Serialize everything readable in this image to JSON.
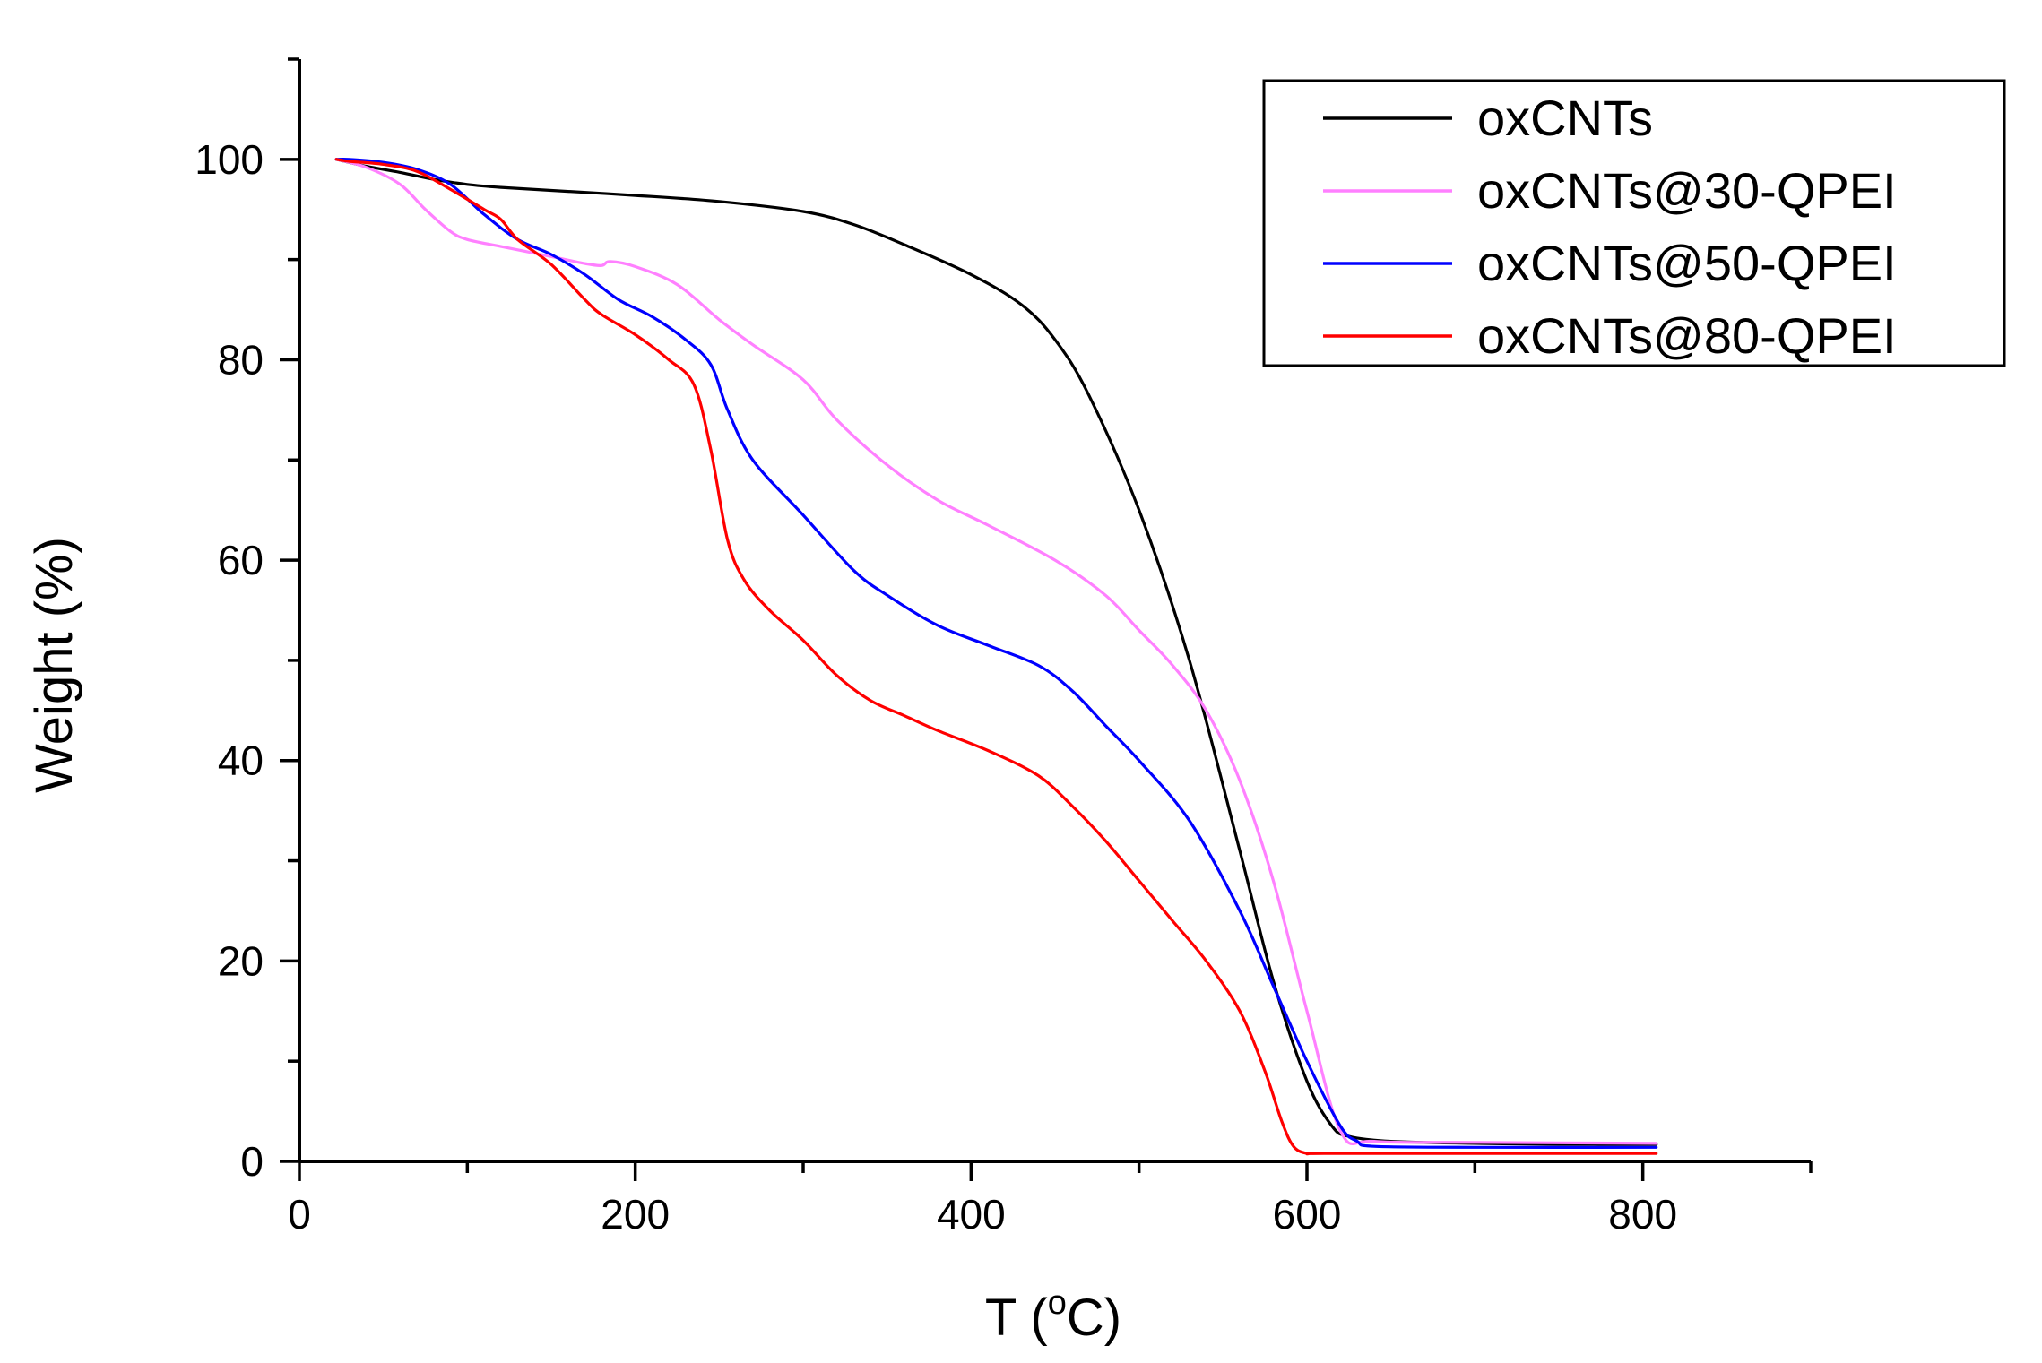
{
  "chart_data": {
    "type": "line",
    "title": "",
    "xlabel": "T (",
    "xlabel_sup": "o",
    "xlabel_unit": "C)",
    "ylabel": "Weight (%)",
    "xlim": [
      0,
      900
    ],
    "ylim": [
      0,
      110
    ],
    "x_ticks": [
      0,
      200,
      400,
      600,
      800
    ],
    "x_minor_ticks": [
      100,
      300,
      500,
      700,
      900
    ],
    "y_ticks": [
      0,
      20,
      40,
      60,
      80,
      100
    ],
    "y_minor_ticks": [
      10,
      30,
      50,
      70,
      90,
      110
    ],
    "x_tick_labels": [
      "0",
      "200",
      "400",
      "600",
      "800"
    ],
    "y_tick_labels": [
      "0",
      "20",
      "40",
      "60",
      "80",
      "100"
    ],
    "grid": false,
    "legend_position": "top-right",
    "series": [
      {
        "name": "oxCNTs",
        "color": "#000000",
        "x": [
          22,
          40,
          60,
          80,
          100,
          120,
          150,
          200,
          250,
          300,
          330,
          360,
          400,
          430,
          450,
          470,
          500,
          530,
          560,
          580,
          600,
          615,
          625,
          650,
          700,
          750,
          808
        ],
        "y": [
          100,
          99.3,
          98.7,
          98,
          97.5,
          97.2,
          96.9,
          96.4,
          95.8,
          94.8,
          93.5,
          91.5,
          88.5,
          85.5,
          82,
          76.5,
          65,
          50,
          31,
          18,
          8,
          3.5,
          2.5,
          2,
          1.8,
          1.7,
          1.7
        ]
      },
      {
        "name": "oxCNTs@30-QPEI",
        "color": "#ff80ff",
        "x": [
          22,
          40,
          60,
          75,
          90,
          100,
          120,
          150,
          170,
          180,
          185,
          200,
          225,
          250,
          270,
          300,
          320,
          350,
          380,
          410,
          450,
          480,
          500,
          520,
          540,
          560,
          580,
          600,
          620,
          640,
          700,
          808
        ],
        "y": [
          100,
          99.2,
          97.5,
          95,
          92.8,
          92,
          91.3,
          90.3,
          89.6,
          89.4,
          89.8,
          89.3,
          87.5,
          84,
          81.5,
          78,
          74,
          69.5,
          66,
          63.5,
          60,
          56.5,
          53,
          49.5,
          45,
          38,
          28,
          15,
          3,
          2,
          1.9,
          1.8
        ]
      },
      {
        "name": "oxCNTs@50-QPEI",
        "color": "#0000ff",
        "x": [
          22,
          30,
          50,
          70,
          90,
          110,
          130,
          150,
          170,
          190,
          210,
          230,
          245,
          255,
          270,
          300,
          330,
          350,
          380,
          410,
          440,
          460,
          480,
          500,
          530,
          560,
          580,
          600,
          620,
          630,
          640,
          700,
          808
        ],
        "y": [
          100,
          100,
          99.7,
          99,
          97.5,
          94.5,
          92,
          90.5,
          88.5,
          86,
          84.3,
          82,
          79.5,
          75,
          70,
          64.5,
          59,
          56.5,
          53.5,
          51.5,
          49.5,
          47,
          43.5,
          40,
          34,
          25,
          17.5,
          10,
          3.5,
          2,
          1.5,
          1.4,
          1.4
        ]
      },
      {
        "name": "oxCNTs@80-QPEI",
        "color": "#ff0000",
        "x": [
          22,
          30,
          50,
          70,
          90,
          110,
          120,
          130,
          150,
          170,
          180,
          200,
          220,
          235,
          245,
          255,
          265,
          280,
          300,
          320,
          340,
          360,
          380,
          410,
          440,
          460,
          480,
          500,
          520,
          540,
          560,
          575,
          585,
          592,
          600,
          610,
          700,
          808
        ],
        "y": [
          100,
          99.8,
          99.5,
          98.8,
          97,
          95,
          94,
          92,
          89.5,
          86,
          84.5,
          82.5,
          80,
          77.5,
          71,
          62,
          58,
          55,
          52,
          48.5,
          46,
          44.5,
          43,
          41,
          38.5,
          35.5,
          32,
          28,
          24,
          20,
          15,
          9,
          4,
          1.5,
          0.8,
          0.8,
          0.8,
          0.8
        ]
      }
    ]
  }
}
